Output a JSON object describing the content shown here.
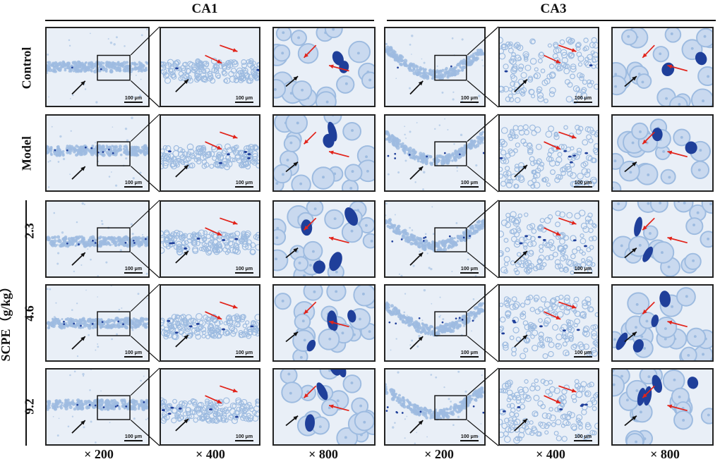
{
  "headers": {
    "left": "CA1",
    "right": "CA3"
  },
  "rows": [
    {
      "label": "Control"
    },
    {
      "label": "Model"
    },
    {
      "label": "2.3"
    },
    {
      "label": "4.6"
    },
    {
      "label": "9.2"
    }
  ],
  "group_label": "SCPE（g/kg）",
  "magnifications": [
    "× 200",
    "× 400",
    "× 800",
    "× 200",
    "× 400",
    "× 800"
  ],
  "scale_bar_text": "100 μm",
  "colors": {
    "background": "#e8eef6",
    "stain_light": "#9dbbe0",
    "stain_dark": "#1f3f9a",
    "arrow_red": "#e2231a",
    "arrow_black": "#111111"
  }
}
